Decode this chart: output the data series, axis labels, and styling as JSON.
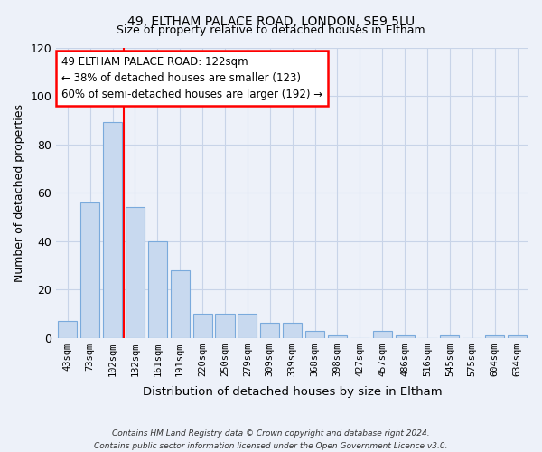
{
  "title1": "49, ELTHAM PALACE ROAD, LONDON, SE9 5LU",
  "title2": "Size of property relative to detached houses in Eltham",
  "xlabel": "Distribution of detached houses by size in Eltham",
  "ylabel": "Number of detached properties",
  "categories": [
    "43sqm",
    "73sqm",
    "102sqm",
    "132sqm",
    "161sqm",
    "191sqm",
    "220sqm",
    "250sqm",
    "279sqm",
    "309sqm",
    "339sqm",
    "368sqm",
    "398sqm",
    "427sqm",
    "457sqm",
    "486sqm",
    "516sqm",
    "545sqm",
    "575sqm",
    "604sqm",
    "634sqm"
  ],
  "values": [
    7,
    56,
    89,
    54,
    40,
    28,
    10,
    10,
    10,
    6,
    6,
    3,
    1,
    0,
    3,
    1,
    0,
    1,
    0,
    1,
    1
  ],
  "bar_color": "#c8d9ef",
  "bar_edge_color": "#7aaadc",
  "vline_color": "red",
  "annotation_text": "49 ELTHAM PALACE ROAD: 122sqm\n← 38% of detached houses are smaller (123)\n60% of semi-detached houses are larger (192) →",
  "annotation_box_color": "white",
  "annotation_box_edge": "red",
  "footer1": "Contains HM Land Registry data © Crown copyright and database right 2024.",
  "footer2": "Contains public sector information licensed under the Open Government Licence v3.0.",
  "ylim": [
    0,
    120
  ],
  "yticks": [
    0,
    20,
    40,
    60,
    80,
    100,
    120
  ],
  "grid_color": "#c8d4e8",
  "bg_color": "#edf1f9"
}
